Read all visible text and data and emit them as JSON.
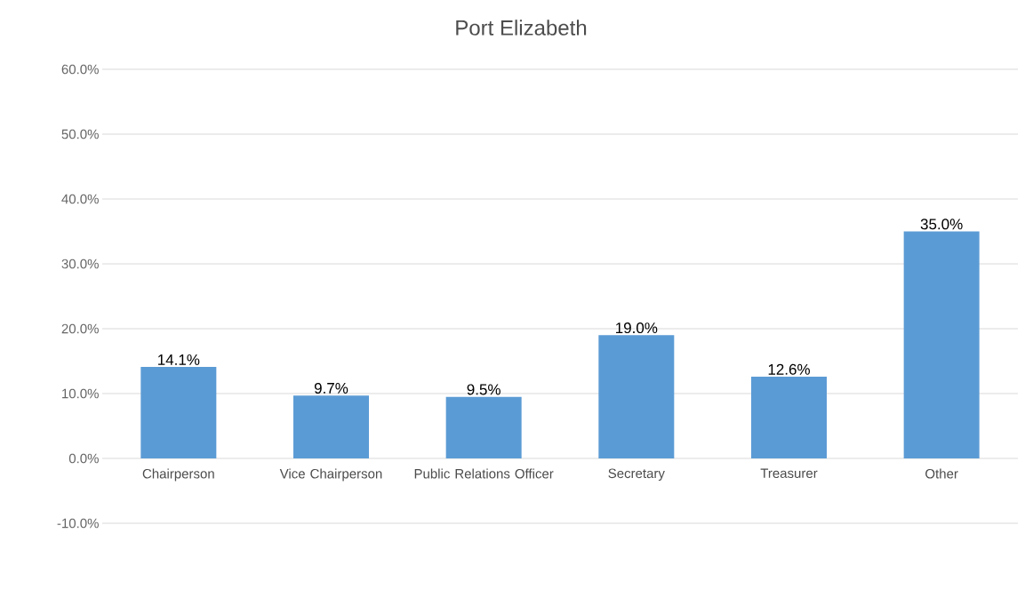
{
  "chart_data": {
    "type": "bar",
    "title": "Port Elizabeth",
    "categories": [
      "Chairperson",
      "Vice Chairperson",
      "Public Relations Officer",
      "Secretary",
      "Treasurer",
      "Other"
    ],
    "values": [
      14.1,
      9.7,
      9.5,
      19.0,
      12.6,
      35.0
    ],
    "value_labels": [
      "14.1%",
      "9.7%",
      "9.5%",
      "19.0%",
      "12.6%",
      "35.0%"
    ],
    "color": "#5b9bd5",
    "ylim": [
      -10,
      60
    ],
    "yticks": [
      {
        "value": -10,
        "label": "-10.0%"
      },
      {
        "value": 0,
        "label": "0.0%"
      },
      {
        "value": 10,
        "label": "10.0%"
      },
      {
        "value": 20,
        "label": "20.0%"
      },
      {
        "value": 30,
        "label": "30.0%"
      },
      {
        "value": 40,
        "label": "40.0%"
      },
      {
        "value": 50,
        "label": "50.0%"
      },
      {
        "value": 60,
        "label": "60.0%"
      }
    ],
    "grid": "y"
  }
}
